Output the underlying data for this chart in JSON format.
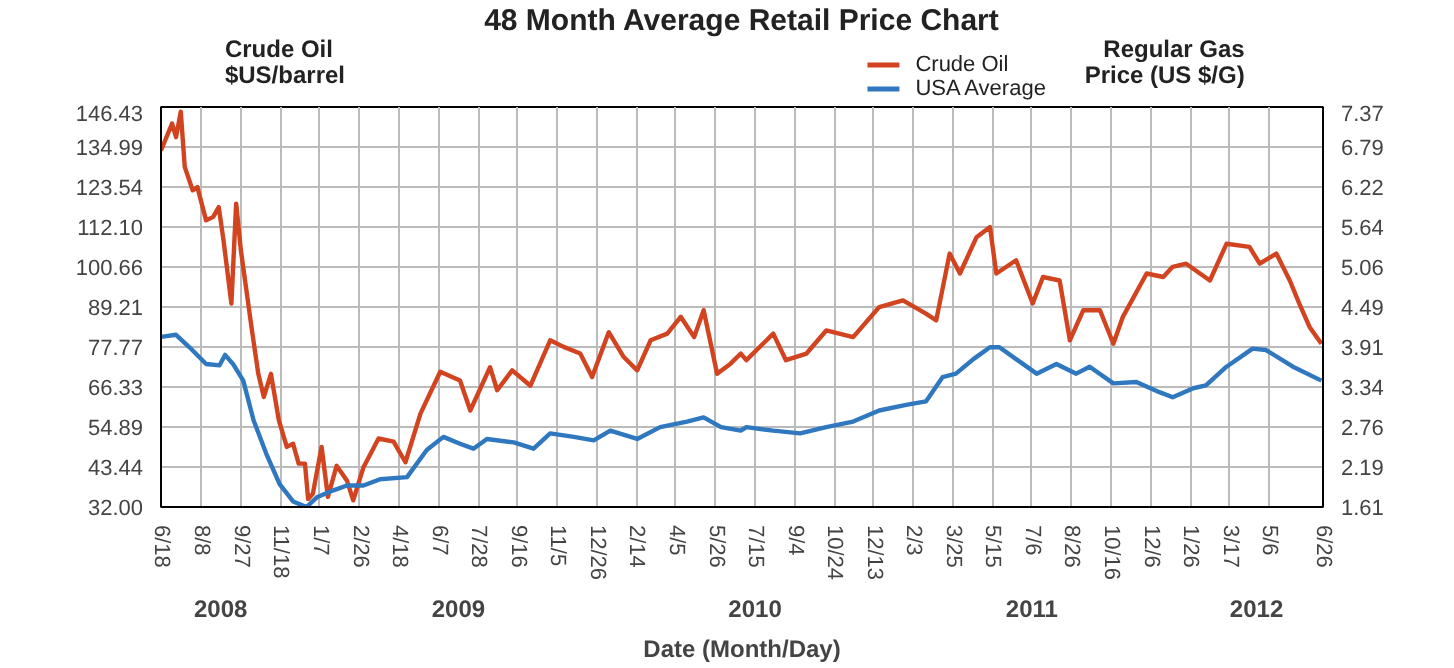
{
  "chart_data": {
    "type": "line",
    "title": "48 Month Average Retail Price Chart",
    "xlabel": "Date (Month/Day)",
    "ylabel": "Crude Oil\n$US/barrel",
    "y2label": "Regular Gas\nPrice (US $/G)",
    "xlim": [
      "2008-06-18",
      "2012-06-26"
    ],
    "xticks": [
      {
        "value": "2008-06-18",
        "label": "6/18"
      },
      {
        "value": "2008-08-08",
        "label": "8/8"
      },
      {
        "value": "2008-09-27",
        "label": "9/27"
      },
      {
        "value": "2008-11-16",
        "label": "11/18"
      },
      {
        "value": "2009-01-05",
        "label": "1/7"
      },
      {
        "value": "2009-02-24",
        "label": "2/26"
      },
      {
        "value": "2009-04-15",
        "label": "4/18"
      },
      {
        "value": "2009-06-04",
        "label": "6/7"
      },
      {
        "value": "2009-07-24",
        "label": "7/28"
      },
      {
        "value": "2009-09-12",
        "label": "9/16"
      },
      {
        "value": "2009-11-01",
        "label": "11/5"
      },
      {
        "value": "2009-12-21",
        "label": "12/26"
      },
      {
        "value": "2010-02-09",
        "label": "2/14"
      },
      {
        "value": "2010-03-31",
        "label": "4/5"
      },
      {
        "value": "2010-05-20",
        "label": "5/26"
      },
      {
        "value": "2010-07-09",
        "label": "7/15"
      },
      {
        "value": "2010-08-28",
        "label": "9/4"
      },
      {
        "value": "2010-10-17",
        "label": "10/24"
      },
      {
        "value": "2010-12-06",
        "label": "12/13"
      },
      {
        "value": "2011-01-25",
        "label": "2/3"
      },
      {
        "value": "2011-03-16",
        "label": "3/25"
      },
      {
        "value": "2011-05-05",
        "label": "5/15"
      },
      {
        "value": "2011-06-24",
        "label": "7/6"
      },
      {
        "value": "2011-08-13",
        "label": "8/26"
      },
      {
        "value": "2011-10-02",
        "label": "10/16"
      },
      {
        "value": "2011-11-21",
        "label": "12/6"
      },
      {
        "value": "2012-01-10",
        "label": "1/26"
      },
      {
        "value": "2012-02-29",
        "label": "3/17"
      },
      {
        "value": "2012-04-19",
        "label": "5/6"
      },
      {
        "value": "2012-06-26",
        "label": "6/26"
      }
    ],
    "ylim": [
      32.0,
      146.43
    ],
    "yticks": [
      {
        "value": 32,
        "label": "32.00"
      },
      43.44,
      54.89,
      66.33,
      77.77,
      89.21,
      100.66,
      {
        "value": 112.1,
        "label": "112.10"
      },
      123.54,
      134.99,
      146.43
    ],
    "y2lim": [
      1.61,
      7.37
    ],
    "y2ticks": [
      1.61,
      2.19,
      2.76,
      3.34,
      3.91,
      4.49,
      5.06,
      5.64,
      6.22,
      6.79,
      7.37
    ],
    "grid": true,
    "legend": "top",
    "marker": "none",
    "line_style": "solid",
    "annotations": [
      "2008",
      "2009",
      "2010",
      "2011",
      "2012"
    ],
    "series": [
      {
        "name": "Crude Oil",
        "color": "#d2431f",
        "x": [
          "2008-06-18",
          "2008-07-02",
          "2008-07-07",
          "2008-07-13",
          "2008-07-18",
          "2008-07-28",
          "2008-08-03",
          "2008-08-14",
          "2008-08-23",
          "2008-08-30",
          "2008-09-05",
          "2008-09-15",
          "2008-09-21",
          "2008-09-27",
          "2008-10-11",
          "2008-10-19",
          "2008-10-26",
          "2008-11-04",
          "2008-11-14",
          "2008-11-24",
          "2008-12-02",
          "2008-12-09",
          "2008-12-17",
          "2008-12-21",
          "2008-12-27",
          "2009-01-07",
          "2009-01-15",
          "2009-01-26",
          "2009-02-08",
          "2009-02-16",
          "2009-03-01",
          "2009-03-20",
          "2009-04-08",
          "2009-04-23",
          "2009-05-12",
          "2009-06-06",
          "2009-07-01",
          "2009-07-14",
          "2009-08-08",
          "2009-08-17",
          "2009-09-05",
          "2009-09-28",
          "2009-10-23",
          "2009-11-09",
          "2009-11-30",
          "2009-12-15",
          "2010-01-05",
          "2010-01-24",
          "2010-02-10",
          "2010-02-27",
          "2010-03-20",
          "2010-04-06",
          "2010-04-23",
          "2010-05-05",
          "2010-05-14",
          "2010-05-22",
          "2010-06-08",
          "2010-06-21",
          "2010-06-28",
          "2010-08-01",
          "2010-08-17",
          "2010-09-12",
          "2010-10-07",
          "2010-11-10",
          "2010-12-13",
          "2011-01-12",
          "2011-02-10",
          "2011-02-23",
          "2011-03-12",
          "2011-03-25",
          "2011-04-15",
          "2011-05-02",
          "2011-05-10",
          "2011-06-04",
          "2011-06-25",
          "2011-07-08",
          "2011-07-29",
          "2011-08-11",
          "2011-08-28",
          "2011-09-18",
          "2011-10-05",
          "2011-10-17",
          "2011-11-16",
          "2011-12-07",
          "2011-12-19",
          "2012-01-05",
          "2012-02-04",
          "2012-02-25",
          "2012-03-25",
          "2012-04-07",
          "2012-04-28",
          "2012-05-15",
          "2012-05-27",
          "2012-06-09",
          "2012-06-24"
        ],
        "values": [
          134.0,
          141.7,
          137.8,
          145.1,
          129.3,
          122.6,
          123.5,
          114.0,
          115.0,
          117.8,
          108.3,
          90.2,
          118.8,
          105.4,
          82.5,
          70.1,
          63.5,
          70.1,
          56.8,
          49.2,
          50.1,
          44.4,
          44.4,
          34.3,
          35.8,
          49.2,
          34.9,
          43.8,
          39.6,
          33.9,
          43.4,
          51.6,
          50.7,
          44.8,
          58.7,
          70.7,
          68.2,
          59.6,
          72.0,
          65.4,
          71.1,
          66.7,
          79.7,
          77.8,
          75.9,
          69.2,
          82.0,
          74.9,
          71.1,
          79.7,
          81.6,
          86.4,
          80.6,
          88.3,
          78.7,
          70.1,
          73.0,
          75.9,
          74.0,
          81.6,
          74.0,
          75.9,
          82.5,
          80.6,
          89.2,
          91.1,
          87.3,
          85.4,
          104.5,
          98.8,
          109.2,
          112.1,
          98.8,
          102.6,
          90.2,
          97.8,
          96.8,
          79.7,
          88.3,
          88.3,
          78.7,
          86.4,
          98.8,
          97.8,
          100.7,
          101.6,
          96.8,
          107.3,
          106.4,
          101.6,
          104.5,
          96.8,
          90.2,
          83.5,
          78.7
        ]
      },
      {
        "name": "USA Average",
        "color": "#2f78bf",
        "axis": "y2",
        "x": [
          "2008-06-18",
          "2008-07-07",
          "2008-07-24",
          "2008-08-14",
          "2008-08-31",
          "2008-09-07",
          "2008-09-17",
          "2008-09-30",
          "2008-10-13",
          "2008-10-29",
          "2008-11-15",
          "2008-12-02",
          "2008-12-19",
          "2009-01-01",
          "2009-01-22",
          "2009-02-08",
          "2009-03-01",
          "2009-03-22",
          "2009-04-25",
          "2009-05-20",
          "2009-06-10",
          "2009-07-01",
          "2009-07-18",
          "2009-08-04",
          "2009-09-07",
          "2009-10-02",
          "2009-10-23",
          "2009-11-22",
          "2009-12-17",
          "2010-01-07",
          "2010-02-10",
          "2010-03-11",
          "2010-04-14",
          "2010-05-05",
          "2010-05-27",
          "2010-06-21",
          "2010-06-28",
          "2010-08-01",
          "2010-09-04",
          "2010-10-07",
          "2010-11-10",
          "2010-12-13",
          "2011-01-16",
          "2011-02-10",
          "2011-03-03",
          "2011-03-20",
          "2011-04-11",
          "2011-05-02",
          "2011-05-14",
          "2011-06-04",
          "2011-06-30",
          "2011-07-25",
          "2011-08-19",
          "2011-09-05",
          "2011-10-05",
          "2011-11-03",
          "2011-12-03",
          "2011-12-19",
          "2012-01-14",
          "2012-01-30",
          "2012-02-25",
          "2012-03-29",
          "2012-04-15",
          "2012-05-19",
          "2012-06-24"
        ],
        "values": [
          4.06,
          4.09,
          3.91,
          3.67,
          3.65,
          3.8,
          3.67,
          3.43,
          2.86,
          2.38,
          1.94,
          1.69,
          1.61,
          1.75,
          1.85,
          1.92,
          1.92,
          2.01,
          2.04,
          2.43,
          2.62,
          2.52,
          2.45,
          2.59,
          2.54,
          2.45,
          2.67,
          2.62,
          2.57,
          2.71,
          2.59,
          2.76,
          2.84,
          2.9,
          2.76,
          2.71,
          2.76,
          2.71,
          2.67,
          2.76,
          2.84,
          3.0,
          3.08,
          3.13,
          3.48,
          3.53,
          3.74,
          3.91,
          3.91,
          3.74,
          3.53,
          3.67,
          3.53,
          3.63,
          3.39,
          3.41,
          3.26,
          3.19,
          3.32,
          3.36,
          3.63,
          3.89,
          3.87,
          3.63,
          3.43
        ]
      }
    ]
  }
}
